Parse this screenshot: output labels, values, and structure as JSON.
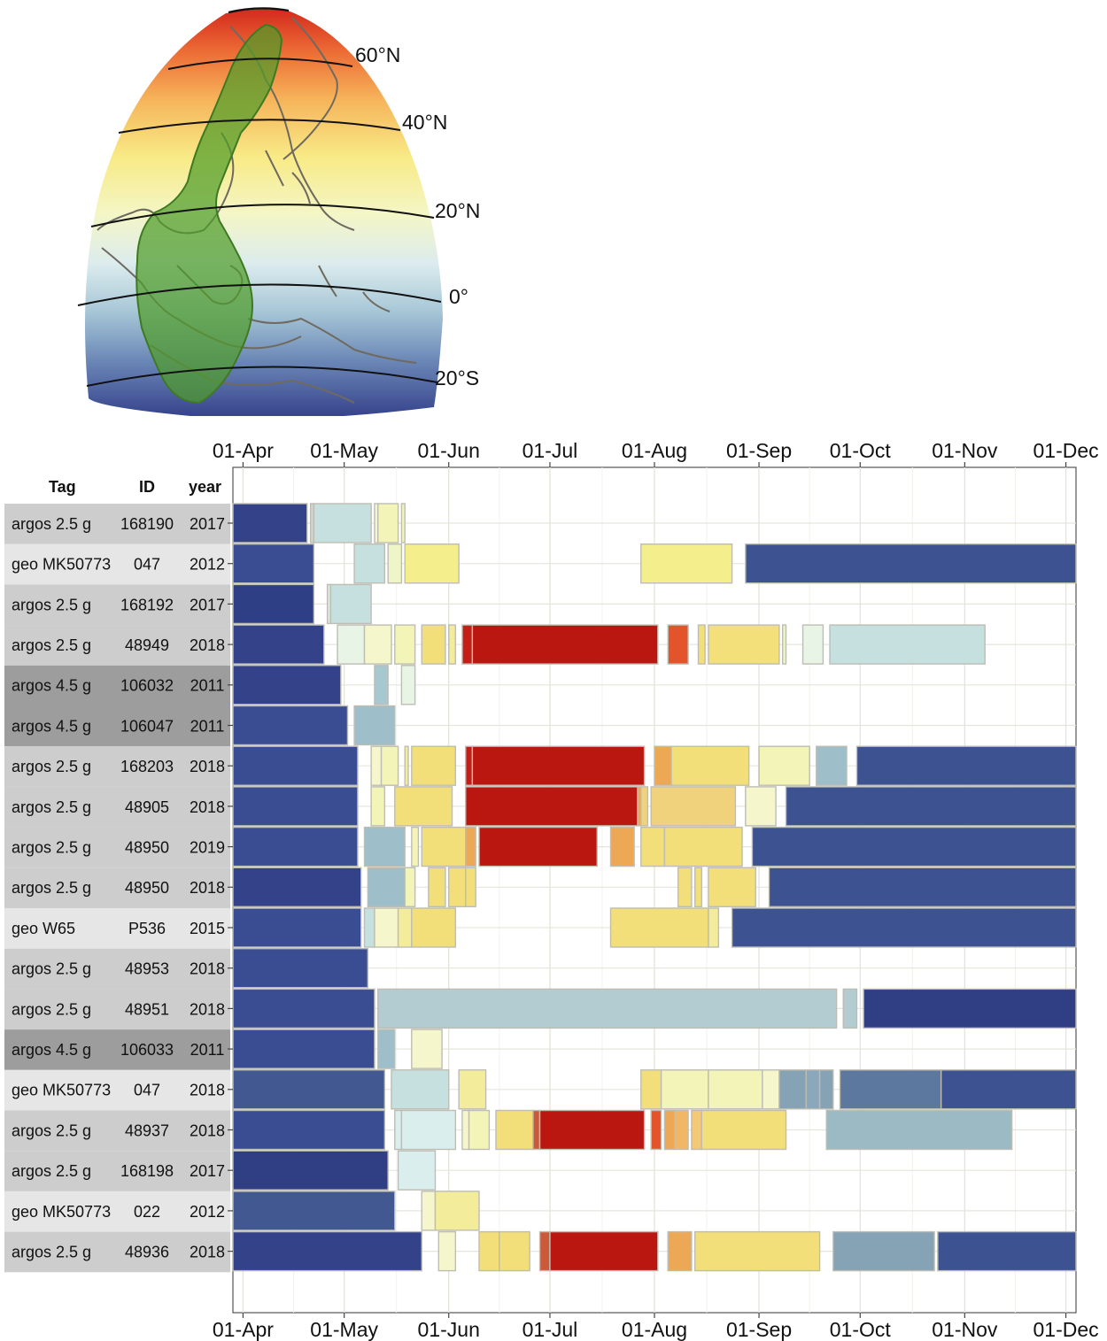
{
  "map": {
    "lat_labels": [
      "60°N",
      "40°N",
      "20°N",
      "0°",
      "20°S"
    ],
    "colors": {
      "north": "#d83a28",
      "mid": "#f8ee8c",
      "equator": "#e2eef0",
      "south": "#33408a",
      "range_fill": "#4f9d2a"
    }
  },
  "chart_data": {
    "type": "gantt",
    "x_axis_ticks": [
      "01-Apr",
      "01-May",
      "01-Jun",
      "01-Jul",
      "01-Aug",
      "01-Sep",
      "01-Oct",
      "01-Nov",
      "01-Dec"
    ],
    "xlim": [
      "2000-03-29",
      "2000-12-04"
    ],
    "grid": true,
    "columns": [
      "Tag",
      "ID",
      "year"
    ],
    "rows": [
      {
        "tag": "argos 2.5 g",
        "id": "168190",
        "year": "2017",
        "segments": [
          {
            "start": "03-29",
            "end": "04-20",
            "color": "#34428a"
          },
          {
            "start": "04-21",
            "end": "04-22",
            "color": "#cfd6d0"
          },
          {
            "start": "04-22",
            "end": "05-09",
            "color": "#c6e0df"
          },
          {
            "start": "05-10",
            "end": "05-11",
            "color": "#f6f6cc"
          },
          {
            "start": "05-11",
            "end": "05-17",
            "color": "#f3f4b8"
          },
          {
            "start": "05-18",
            "end": "05-19",
            "color": "#f3f4b8"
          }
        ]
      },
      {
        "tag": "geo MK50773",
        "id": "047",
        "year": "2012",
        "segments": [
          {
            "start": "03-29",
            "end": "04-22",
            "color": "#3a4d92"
          },
          {
            "start": "05-04",
            "end": "05-13",
            "color": "#c6e0df"
          },
          {
            "start": "05-14",
            "end": "05-18",
            "color": "#eef5c6"
          },
          {
            "start": "05-19",
            "end": "06-04",
            "color": "#f5ee8c"
          },
          {
            "start": "07-28",
            "end": "08-24",
            "color": "#f5ee8c"
          },
          {
            "start": "08-28",
            "end": "12-04",
            "color": "#3d5290"
          }
        ]
      },
      {
        "tag": "argos 2.5 g",
        "id": "168192",
        "year": "2017",
        "segments": [
          {
            "start": "03-29",
            "end": "04-22",
            "color": "#2f3f85"
          },
          {
            "start": "04-26",
            "end": "04-27",
            "color": "#e2e6dc"
          },
          {
            "start": "04-27",
            "end": "05-09",
            "color": "#c6e0df"
          }
        ]
      },
      {
        "tag": "argos 2.5 g",
        "id": "48949",
        "year": "2018",
        "segments": [
          {
            "start": "03-29",
            "end": "04-25",
            "color": "#34428a"
          },
          {
            "start": "04-29",
            "end": "05-07",
            "color": "#e8f4e6"
          },
          {
            "start": "05-07",
            "end": "05-15",
            "color": "#f6f6cc"
          },
          {
            "start": "05-16",
            "end": "05-22",
            "color": "#f3f4b8"
          },
          {
            "start": "05-24",
            "end": "05-31",
            "color": "#f2df7a"
          },
          {
            "start": "06-01",
            "end": "06-03",
            "color": "#f3ec9a"
          },
          {
            "start": "06-05",
            "end": "06-08",
            "color": "#c71d17"
          },
          {
            "start": "06-08",
            "end": "08-02",
            "color": "#bb1711"
          },
          {
            "start": "08-05",
            "end": "08-11",
            "color": "#e4542b"
          },
          {
            "start": "08-14",
            "end": "08-16",
            "color": "#f2df7a"
          },
          {
            "start": "08-17",
            "end": "09-07",
            "color": "#f3e07a"
          },
          {
            "start": "09-08",
            "end": "09-09",
            "color": "#eef5c6"
          },
          {
            "start": "09-14",
            "end": "09-20",
            "color": "#e8f4e6"
          },
          {
            "start": "09-22",
            "end": "11-07",
            "color": "#c6e0df"
          }
        ]
      },
      {
        "tag": "argos 4.5 g",
        "id": "106032",
        "year": "2011",
        "segments": [
          {
            "start": "03-29",
            "end": "04-30",
            "color": "#34428a"
          },
          {
            "start": "05-10",
            "end": "05-14",
            "color": "#a8c8d0"
          },
          {
            "start": "05-18",
            "end": "05-22",
            "color": "#e8f4e6"
          }
        ]
      },
      {
        "tag": "argos 4.5 g",
        "id": "106047",
        "year": "2011",
        "segments": [
          {
            "start": "03-29",
            "end": "05-02",
            "color": "#3a4d92"
          },
          {
            "start": "05-04",
            "end": "05-16",
            "color": "#9ebfca"
          }
        ]
      },
      {
        "tag": "argos 2.5 g",
        "id": "168203",
        "year": "2018",
        "segments": [
          {
            "start": "03-29",
            "end": "05-05",
            "color": "#3a4d92"
          },
          {
            "start": "05-09",
            "end": "05-12",
            "color": "#f6f6cc"
          },
          {
            "start": "05-12",
            "end": "05-17",
            "color": "#f3f4b8"
          },
          {
            "start": "05-19",
            "end": "05-20",
            "color": "#f3ec9a"
          },
          {
            "start": "05-21",
            "end": "06-03",
            "color": "#f2df7a"
          },
          {
            "start": "06-06",
            "end": "06-08",
            "color": "#c71d17"
          },
          {
            "start": "06-08",
            "end": "07-29",
            "color": "#bb1711"
          },
          {
            "start": "08-01",
            "end": "08-06",
            "color": "#eda856"
          },
          {
            "start": "08-06",
            "end": "08-29",
            "color": "#f2df7a"
          },
          {
            "start": "09-01",
            "end": "09-16",
            "color": "#f3f4b8"
          },
          {
            "start": "09-18",
            "end": "09-27",
            "color": "#9ebfca"
          },
          {
            "start": "09-30",
            "end": "12-04",
            "color": "#3d5290"
          }
        ]
      },
      {
        "tag": "argos 2.5 g",
        "id": "48905",
        "year": "2018",
        "segments": [
          {
            "start": "03-29",
            "end": "05-05",
            "color": "#3a4d92"
          },
          {
            "start": "05-09",
            "end": "05-13",
            "color": "#f3f4b8"
          },
          {
            "start": "05-16",
            "end": "06-02",
            "color": "#f2df7a"
          },
          {
            "start": "06-06",
            "end": "07-27",
            "color": "#bb1711"
          },
          {
            "start": "07-27",
            "end": "07-28",
            "color": "#eda856"
          },
          {
            "start": "07-28",
            "end": "07-30",
            "color": "#f0d27c"
          },
          {
            "start": "07-31",
            "end": "08-25",
            "color": "#f0d27c"
          },
          {
            "start": "08-28",
            "end": "09-06",
            "color": "#f6f6cc"
          },
          {
            "start": "09-09",
            "end": "12-04",
            "color": "#3d5290"
          }
        ]
      },
      {
        "tag": "argos 2.5 g",
        "id": "48950",
        "year": "2019",
        "segments": [
          {
            "start": "03-29",
            "end": "05-05",
            "color": "#3a4d92"
          },
          {
            "start": "05-07",
            "end": "05-19",
            "color": "#9ebfca"
          },
          {
            "start": "05-21",
            "end": "05-23",
            "color": "#f3f4b8"
          },
          {
            "start": "05-24",
            "end": "06-06",
            "color": "#f2df7a"
          },
          {
            "start": "06-06",
            "end": "06-09",
            "color": "#eda856"
          },
          {
            "start": "06-10",
            "end": "07-15",
            "color": "#bb1711"
          },
          {
            "start": "07-19",
            "end": "07-26",
            "color": "#eda856"
          },
          {
            "start": "07-28",
            "end": "08-04",
            "color": "#f2df7a"
          },
          {
            "start": "08-04",
            "end": "08-27",
            "color": "#f2df7a"
          },
          {
            "start": "08-30",
            "end": "12-04",
            "color": "#3d5290"
          }
        ]
      },
      {
        "tag": "argos 2.5 g",
        "id": "48950",
        "year": "2018",
        "segments": [
          {
            "start": "03-29",
            "end": "05-06",
            "color": "#34428a"
          },
          {
            "start": "05-08",
            "end": "05-19",
            "color": "#9ebfca"
          },
          {
            "start": "05-19",
            "end": "05-22",
            "color": "#f3f4b8"
          },
          {
            "start": "05-26",
            "end": "05-31",
            "color": "#f2df7a"
          },
          {
            "start": "06-01",
            "end": "06-06",
            "color": "#f2df7a"
          },
          {
            "start": "06-06",
            "end": "06-09",
            "color": "#f2df7a"
          },
          {
            "start": "08-08",
            "end": "08-12",
            "color": "#f2df7a"
          },
          {
            "start": "08-13",
            "end": "08-15",
            "color": "#f2df7a"
          },
          {
            "start": "08-17",
            "end": "08-31",
            "color": "#f2df7a"
          },
          {
            "start": "09-04",
            "end": "12-04",
            "color": "#3d5290"
          }
        ]
      },
      {
        "tag": "geo W65",
        "id": "P536",
        "year": "2015",
        "segments": [
          {
            "start": "03-29",
            "end": "05-06",
            "color": "#3a4d92"
          },
          {
            "start": "05-07",
            "end": "05-10",
            "color": "#c6e0df"
          },
          {
            "start": "05-10",
            "end": "05-17",
            "color": "#f6f6cc"
          },
          {
            "start": "05-17",
            "end": "05-21",
            "color": "#f3ec9a"
          },
          {
            "start": "05-21",
            "end": "06-03",
            "color": "#f2df7a"
          },
          {
            "start": "07-19",
            "end": "08-17",
            "color": "#f2df7a"
          },
          {
            "start": "08-17",
            "end": "08-20",
            "color": "#f3ec9a"
          },
          {
            "start": "08-24",
            "end": "12-04",
            "color": "#3d5290"
          }
        ]
      },
      {
        "tag": "argos 2.5 g",
        "id": "48953",
        "year": "2018",
        "segments": [
          {
            "start": "03-29",
            "end": "05-08",
            "color": "#3a4d92"
          }
        ]
      },
      {
        "tag": "argos 2.5 g",
        "id": "48951",
        "year": "2018",
        "segments": [
          {
            "start": "03-29",
            "end": "05-10",
            "color": "#3a4d92"
          },
          {
            "start": "05-11",
            "end": "09-24",
            "color": "#b2ccd2"
          },
          {
            "start": "09-26",
            "end": "09-30",
            "color": "#b2ccd2"
          },
          {
            "start": "10-02",
            "end": "12-04",
            "color": "#303e84"
          }
        ]
      },
      {
        "tag": "argos 4.5 g",
        "id": "106033",
        "year": "2011",
        "segments": [
          {
            "start": "03-29",
            "end": "05-10",
            "color": "#3a4d92"
          },
          {
            "start": "05-11",
            "end": "05-16",
            "color": "#9ebfca"
          },
          {
            "start": "05-21",
            "end": "05-30",
            "color": "#f6f6cc"
          }
        ]
      },
      {
        "tag": "geo MK50773",
        "id": "047",
        "year": "2018",
        "segments": [
          {
            "start": "03-29",
            "end": "05-13",
            "color": "#415891"
          },
          {
            "start": "05-15",
            "end": "06-01",
            "color": "#c6e0df"
          },
          {
            "start": "06-04",
            "end": "06-12",
            "color": "#f3ec9a"
          },
          {
            "start": "07-28",
            "end": "08-03",
            "color": "#f2df7a"
          },
          {
            "start": "08-03",
            "end": "08-17",
            "color": "#f3f4b8"
          },
          {
            "start": "08-17",
            "end": "09-02",
            "color": "#f3f4b8"
          },
          {
            "start": "09-02",
            "end": "09-07",
            "color": "#f6f6cc"
          },
          {
            "start": "09-07",
            "end": "09-15",
            "color": "#86a3b5"
          },
          {
            "start": "09-15",
            "end": "09-19",
            "color": "#8aa7bb"
          },
          {
            "start": "09-19",
            "end": "09-23",
            "color": "#86a3b5"
          },
          {
            "start": "09-25",
            "end": "10-25",
            "color": "#5d789f"
          },
          {
            "start": "10-25",
            "end": "12-04",
            "color": "#3d5290"
          }
        ]
      },
      {
        "tag": "argos 2.5 g",
        "id": "48937",
        "year": "2018",
        "segments": [
          {
            "start": "03-29",
            "end": "05-13",
            "color": "#3a4d92"
          },
          {
            "start": "05-16",
            "end": "05-18",
            "color": "#dbeeee"
          },
          {
            "start": "05-18",
            "end": "06-03",
            "color": "#dbeeee"
          },
          {
            "start": "06-05",
            "end": "06-07",
            "color": "#f6f6cc"
          },
          {
            "start": "06-07",
            "end": "06-13",
            "color": "#f3f4b8"
          },
          {
            "start": "06-15",
            "end": "06-26",
            "color": "#f2df7a"
          },
          {
            "start": "06-26",
            "end": "06-28",
            "color": "#cc5a3a"
          },
          {
            "start": "06-28",
            "end": "07-29",
            "color": "#bb1711"
          },
          {
            "start": "07-31",
            "end": "08-03",
            "color": "#e4542b"
          },
          {
            "start": "08-04",
            "end": "08-07",
            "color": "#eda856"
          },
          {
            "start": "08-07",
            "end": "08-11",
            "color": "#f0b865"
          },
          {
            "start": "08-12",
            "end": "08-15",
            "color": "#f3c877"
          },
          {
            "start": "08-15",
            "end": "09-09",
            "color": "#f2df7a"
          },
          {
            "start": "09-21",
            "end": "11-15",
            "color": "#9cbac4"
          }
        ]
      },
      {
        "tag": "argos 2.5 g",
        "id": "168198",
        "year": "2017",
        "segments": [
          {
            "start": "03-29",
            "end": "05-14",
            "color": "#303e84"
          },
          {
            "start": "05-17",
            "end": "05-28",
            "color": "#dbeeee"
          }
        ]
      },
      {
        "tag": "geo MK50773",
        "id": "022",
        "year": "2012",
        "segments": [
          {
            "start": "03-29",
            "end": "05-16",
            "color": "#415891"
          },
          {
            "start": "05-24",
            "end": "05-28",
            "color": "#f6f6cc"
          },
          {
            "start": "05-28",
            "end": "06-10",
            "color": "#f3ec9a"
          }
        ]
      },
      {
        "tag": "argos 2.5 g",
        "id": "48936",
        "year": "2018",
        "segments": [
          {
            "start": "03-29",
            "end": "05-24",
            "color": "#34428a"
          },
          {
            "start": "05-29",
            "end": "06-03",
            "color": "#f6f6cc"
          },
          {
            "start": "06-10",
            "end": "06-16",
            "color": "#f2df7a"
          },
          {
            "start": "06-16",
            "end": "06-25",
            "color": "#f2df7a"
          },
          {
            "start": "06-28",
            "end": "07-01",
            "color": "#cc5a3a"
          },
          {
            "start": "07-01",
            "end": "08-02",
            "color": "#bb1711"
          },
          {
            "start": "08-05",
            "end": "08-12",
            "color": "#eda856"
          },
          {
            "start": "08-13",
            "end": "09-19",
            "color": "#f2df7a"
          },
          {
            "start": "09-23",
            "end": "10-23",
            "color": "#86a3b5"
          },
          {
            "start": "10-24",
            "end": "12-04",
            "color": "#3d5290"
          }
        ]
      }
    ]
  }
}
